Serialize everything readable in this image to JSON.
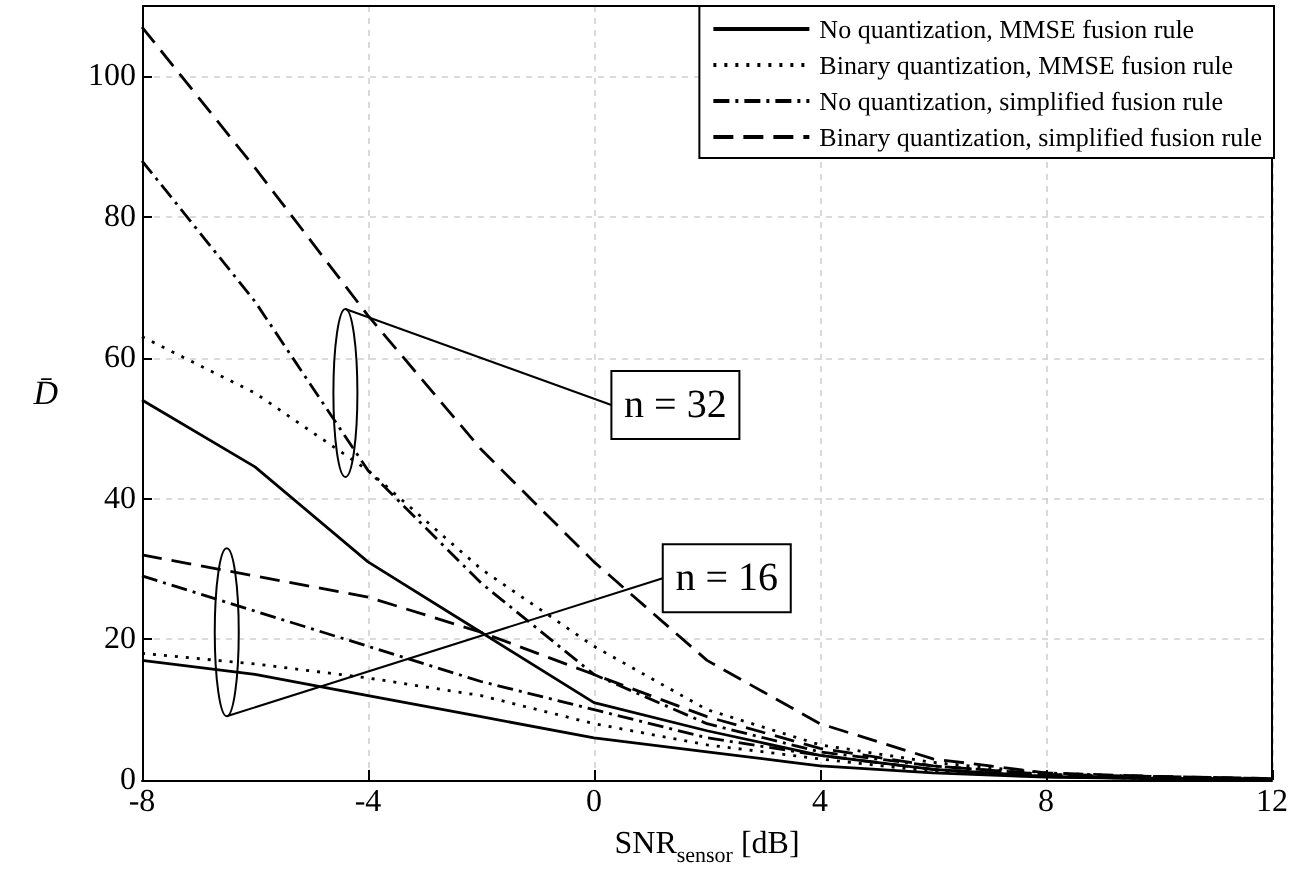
{
  "chart_data": {
    "type": "line",
    "xlabel": "SNR$_{sensor}$ [dB]",
    "ylabel": "D̄",
    "x": [
      -8,
      -6,
      -4,
      -2,
      0,
      2,
      4,
      6,
      8,
      10,
      12
    ],
    "xlim": [
      -8,
      12
    ],
    "xticks": [
      -8,
      -4,
      0,
      4,
      8,
      12
    ],
    "ylim": [
      0,
      110
    ],
    "yticks": [
      0,
      20,
      40,
      60,
      80,
      100
    ],
    "grid": true,
    "legend": "top right",
    "marker": "none",
    "series": [
      {
        "name": "No quantization, MMSE fusion rule",
        "color": "#000000",
        "line_style": "solid",
        "values": [
          54,
          44.5,
          31,
          21,
          11,
          7,
          3.5,
          1.5,
          0.5,
          0.2,
          0.1
        ]
      },
      {
        "name": "Binary quantization, MMSE fusion rule",
        "color": "#000000",
        "line_style": "dotted",
        "values": [
          63,
          55,
          44,
          30,
          19,
          10,
          5,
          2.5,
          1,
          0.4,
          0.1
        ]
      },
      {
        "name": "No quantization, simplified fusion rule",
        "color": "#000000",
        "line_style": "dashdot",
        "values": [
          88,
          68,
          44,
          28,
          15,
          8,
          4,
          2,
          0.8,
          0.3,
          0.1
        ]
      },
      {
        "name": "Binary quantization, simplified fusion rule",
        "color": "#000000",
        "line_style": "dashed",
        "values": [
          107,
          87,
          66,
          47,
          31,
          17,
          8,
          3,
          1,
          0.5,
          0.2
        ]
      },
      {
        "color": "#000000",
        "line_style": "solid",
        "values": [
          17,
          15,
          12,
          9,
          6,
          4,
          2,
          1,
          0.4,
          0.2,
          0.1
        ]
      },
      {
        "color": "#000000",
        "line_style": "dotted",
        "values": [
          18,
          16.5,
          14.5,
          12,
          8,
          5,
          3,
          1.2,
          0.5,
          0.2,
          0.1
        ]
      },
      {
        "color": "#000000",
        "line_style": "dashdot",
        "values": [
          29,
          24,
          19,
          14,
          10,
          6,
          3.5,
          1.5,
          0.5,
          0.2,
          0.1
        ]
      },
      {
        "color": "#000000",
        "line_style": "dashed",
        "values": [
          32,
          29,
          26,
          21,
          15,
          9,
          4.5,
          2,
          0.8,
          0.5,
          0.2
        ]
      }
    ],
    "annotations": [
      "n = 32",
      "n = 16"
    ]
  }
}
